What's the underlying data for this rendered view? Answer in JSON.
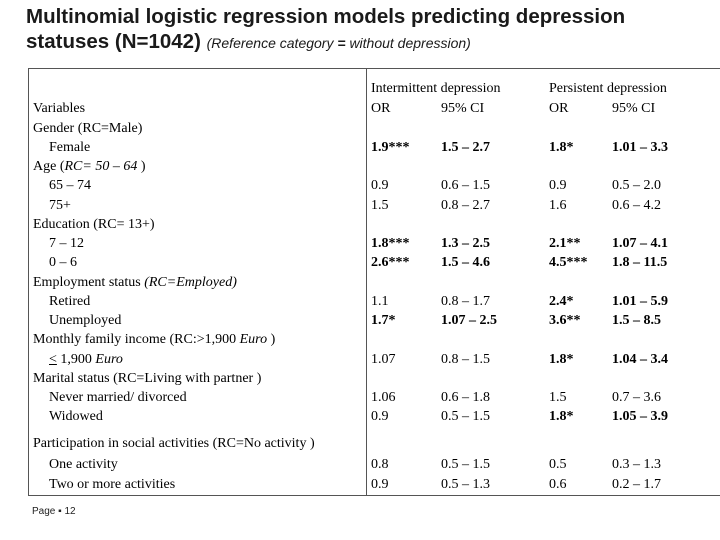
{
  "title": {
    "line1": "Multinomial logistic regression models predicting depression",
    "line2": "statuses  (N=1042)",
    "ref_prefix": "(Reference category",
    "ref_eq": " = ",
    "ref_suffix": "without depression)"
  },
  "header": {
    "group1": "Intermittent depression",
    "group2": "Persistent depression",
    "variables": "Variables",
    "or": "OR",
    "ci": "95% CI"
  },
  "rows": [
    {
      "label": "Gender  (RC=Male)"
    },
    {
      "label": "Female",
      "int_or": "1.9***",
      "int_ci": "1.5 – 2.7",
      "per_or": "1.8*",
      "per_ci": "1.01 – 3.3"
    },
    {
      "label": "Age  (RC= 50 – 64  )"
    },
    {
      "label": "65 – 74",
      "int_or": "0.9",
      "int_ci": "0.6 – 1.5",
      "per_or": "0.9",
      "per_ci": "0.5 – 2.0"
    },
    {
      "label": "75+",
      "int_or": "1.5",
      "int_ci": "0.8 – 2.7",
      "per_or": "1.6",
      "per_ci": "0.6 – 4.2"
    },
    {
      "label": "Education (RC= 13+)"
    },
    {
      "label": "7 – 12",
      "int_or": "1.8***",
      "int_ci": "1.3 – 2.5",
      "per_or": "2.1**",
      "per_ci": "1.07 – 4.1"
    },
    {
      "label": "0 – 6",
      "int_or": "2.6***",
      "int_ci": "1.5 – 4.6",
      "per_or": "4.5***",
      "per_ci": "1.8 – 11.5"
    },
    {
      "label": "Employment status  (RC=Employed)"
    },
    {
      "label": "Retired",
      "int_or": "1.1",
      "int_ci": "0.8 – 1.7",
      "per_or": "2.4*",
      "per_ci": "1.01 – 5.9"
    },
    {
      "label": "Unemployed",
      "int_or": "1.7*",
      "int_ci": "1.07 – 2.5",
      "per_or": "3.6**",
      "per_ci": "1.5 – 8.5"
    },
    {
      "label": "Monthly family income (RC:>1,900 Euro )"
    },
    {
      "label": "< 1,900 Euro",
      "int_or": "1.07",
      "int_ci": "0.8 – 1.5",
      "per_or": "1.8*",
      "per_ci": "1.04 – 3.4"
    },
    {
      "label": "Marital status (RC=Living with partner )"
    },
    {
      "label": "Never married/ divorced",
      "int_or": "1.06",
      "int_ci": "0.6 – 1.8",
      "per_or": "1.5",
      "per_ci": "0.7 – 3.6"
    },
    {
      "label": "Widowed",
      "int_or": "0.9",
      "int_ci": "0.5 – 1.5",
      "per_or": "1.8*",
      "per_ci": "1.05 – 3.9"
    },
    {
      "label": "Participation in social activities (RC=No activity )"
    },
    {
      "label": "One activity",
      "int_or": "0.8",
      "int_ci": "0.5 – 1.5",
      "per_or": "0.5",
      "per_ci": "0.3 – 1.3"
    },
    {
      "label": "Two or more activities",
      "int_or": "0.9",
      "int_ci": "0.5 – 1.3",
      "per_or": "0.6",
      "per_ci": "0.2 – 1.7"
    }
  ],
  "footer": "Page ▪ 12"
}
